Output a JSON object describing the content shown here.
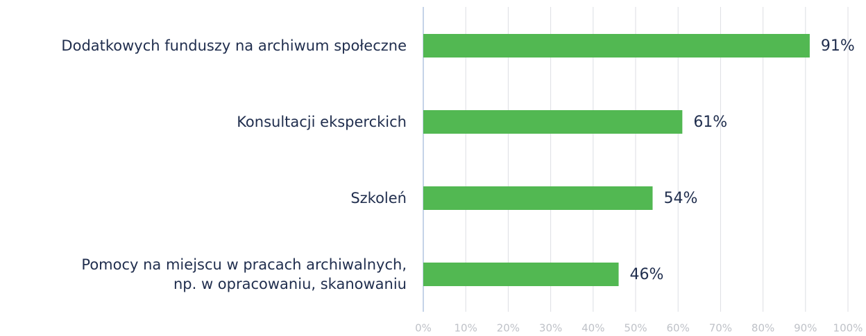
{
  "chart_data": {
    "type": "hbar",
    "categories": [
      "Dodatkowych funduszy na archiwum społeczne",
      "Konsultacji eksperckich",
      "Szkoleń",
      "Pomocy na miejscu w pracach archiwalnych,\nnp. w opracowaniu, skanowaniu"
    ],
    "values": [
      91,
      61,
      54,
      46
    ],
    "value_labels": [
      "91%",
      "61%",
      "54%",
      "46%"
    ],
    "color": "#52b852",
    "xlim": [
      0,
      100
    ],
    "xticks": [
      {
        "value": 0,
        "label": "0%"
      },
      {
        "value": 10,
        "label": "10%"
      },
      {
        "value": 20,
        "label": "20%"
      },
      {
        "value": 30,
        "label": "30%"
      },
      {
        "value": 40,
        "label": "40%"
      },
      {
        "value": 50,
        "label": "50%"
      },
      {
        "value": 60,
        "label": "60%"
      },
      {
        "value": 70,
        "label": "70%"
      },
      {
        "value": 80,
        "label": "80%"
      },
      {
        "value": 90,
        "label": "90%"
      },
      {
        "value": 100,
        "label": "100%"
      }
    ],
    "grid": true
  }
}
